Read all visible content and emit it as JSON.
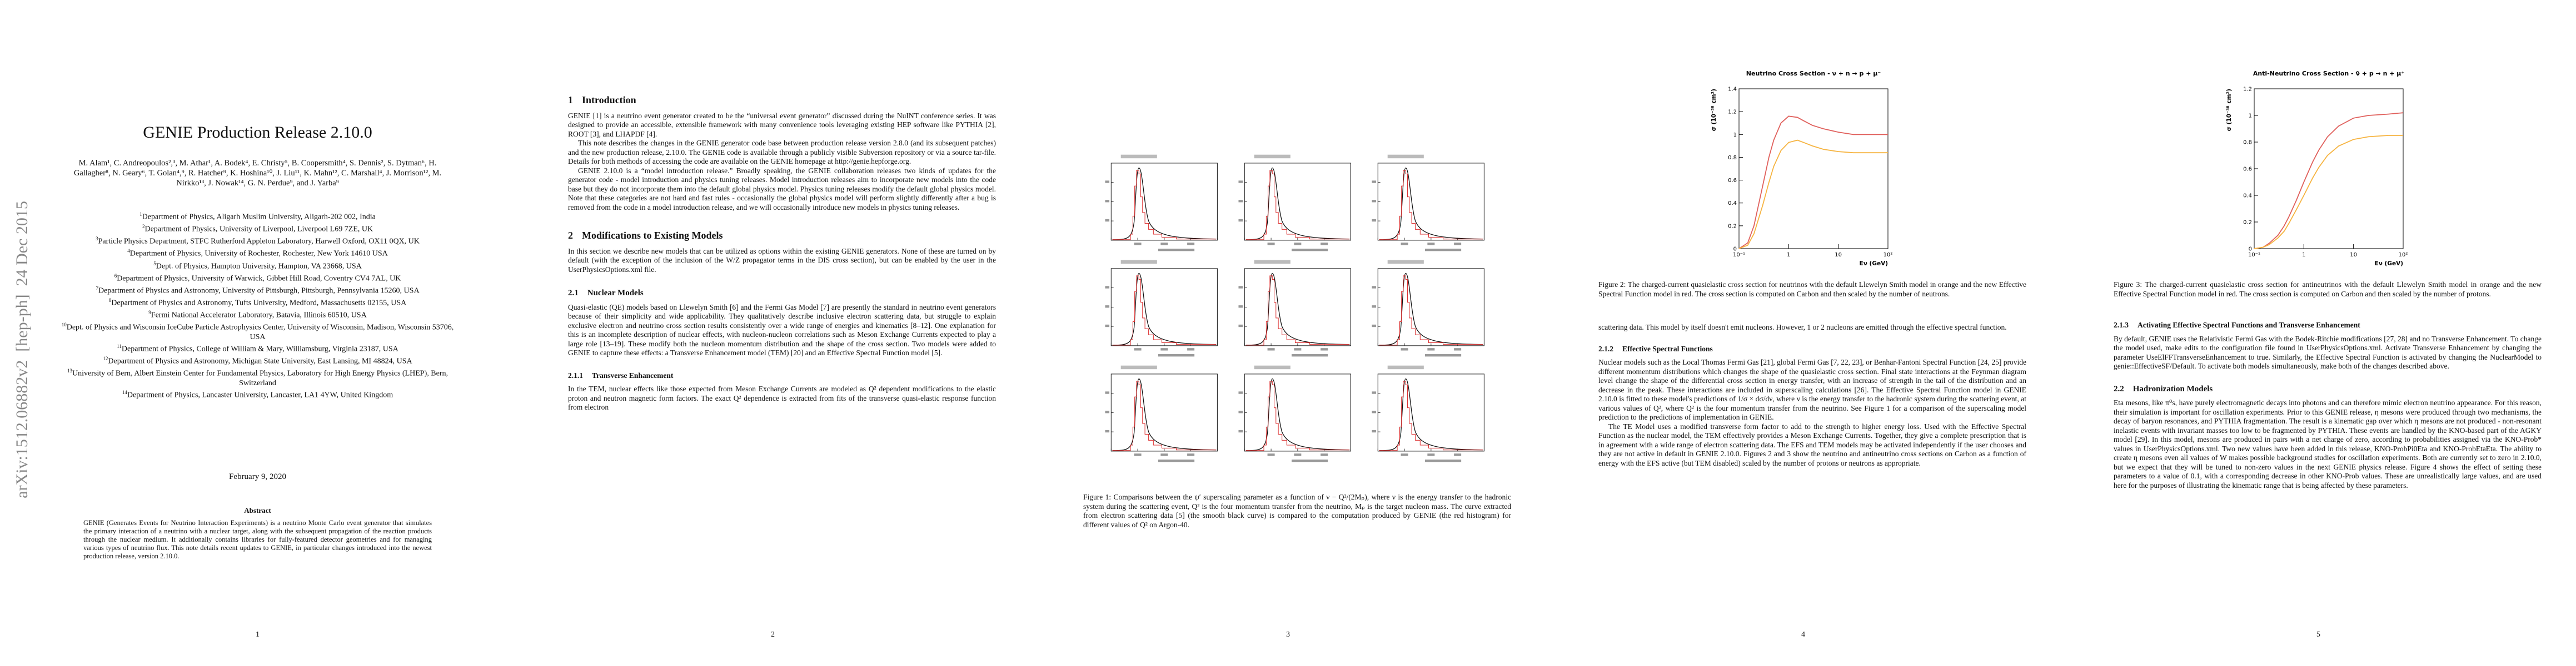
{
  "sidebar": "arXiv:1512.06882v2  [hep-ph]  24 Dec 2015",
  "page1": {
    "title": "GENIE Production Release 2.10.0",
    "authors": "M. Alam¹, C. Andreopoulos²,³, M. Athar¹, A. Bodek⁴, E. Christy⁵, B. Coopersmith⁴, S. Dennis², S. Dytman⁶, H. Gallagher⁸, N. Geary⁶, T. Golan⁴,⁹, R. Hatcher⁹, K. Hoshina¹⁰, J. Liu¹¹, K. Mahn¹², C. Marshall⁴, J. Morrison¹², M. Nirkko¹³, J. Nowak¹⁴, G. N. Perdue⁹, and J. Yarba⁹",
    "affiliations": [
      {
        "mark": "1",
        "text": "Department of Physics, Aligarh Muslim University, Aligarh-202 002, India"
      },
      {
        "mark": "2",
        "text": "Department of Physics, University of Liverpool, Liverpool L69 7ZE, UK"
      },
      {
        "mark": "3",
        "text": "Particle Physics Department, STFC Rutherford Appleton Laboratory, Harwell Oxford, OX11 0QX, UK"
      },
      {
        "mark": "4",
        "text": "Department of Physics, University of Rochester, Rochester, New York 14610 USA"
      },
      {
        "mark": "5",
        "text": "Dept. of Physics, Hampton University, Hampton, VA 23668, USA"
      },
      {
        "mark": "6",
        "text": "Department of Physics, University of Warwick, Gibbet Hill Road, Coventry CV4 7AL, UK"
      },
      {
        "mark": "7",
        "text": "Department of Physics and Astronomy, University of Pittsburgh, Pittsburgh, Pennsylvania 15260, USA"
      },
      {
        "mark": "8",
        "text": "Department of Physics and Astronomy, Tufts University, Medford, Massachusetts 02155, USA"
      },
      {
        "mark": "9",
        "text": "Fermi National Accelerator Laboratory, Batavia, Illinois 60510, USA"
      },
      {
        "mark": "10",
        "text": "Dept. of Physics and Wisconsin IceCube Particle Astrophysics Center, University of Wisconsin, Madison, Wisconsin 53706, USA"
      },
      {
        "mark": "11",
        "text": "Department of Physics, College of William & Mary, Williamsburg, Virginia 23187, USA"
      },
      {
        "mark": "12",
        "text": "Department of Physics and Astronomy, Michigan State University, East Lansing, MI 48824, USA"
      },
      {
        "mark": "13",
        "text": "University of Bern, Albert Einstein Center for Fundamental Physics, Laboratory for High Energy Physics (LHEP), Bern, Switzerland"
      },
      {
        "mark": "14",
        "text": "Department of Physics, Lancaster University, Lancaster, LA1 4YW, United Kingdom"
      }
    ],
    "date": "February 9, 2020",
    "abstract": {
      "heading": "Abstract",
      "text": "GENIE (Generates Events for Neutrino Interaction Experiments) is a neutrino Monte Carlo event generator that simulates the primary interaction of a neutrino with a nuclear target, along with the subsequent propagation of the reaction products through the nuclear medium. It additionally contains libraries for fully-featured detector geometries and for managing various types of neutrino flux. This note details recent updates to GENIE, in particular changes introduced into the newest production release, version 2.10.0."
    },
    "number": 1
  },
  "page2": {
    "introduction": {
      "number": "1",
      "title": "Introduction",
      "paragraphs": [
        "GENIE [1] is a neutrino event generator created to be the “universal event generator” discussed during the NuINT conference series. It was designed to provide an accessible, extensible framework with many convenience tools leveraging existing HEP software like PYTHIA [2], ROOT [3], and LHAPDF [4].",
        "This note describes the changes in the GENIE generator code base between production release version 2.8.0 (and its subsequent patches) and the new production release, 2.10.0. The GENIE code is available through a publicly visible Subversion repository or via a source tar-file. Details for both methods of accessing the code are available on the GENIE homepage at http://genie.hepforge.org.",
        "GENIE 2.10.0 is a “model introduction release.” Broadly speaking, the GENIE collaboration releases two kinds of updates for the generator code - model introduction and physics tuning releases. Model introduction releases aim to incorporate new models into the code base but they do not incorporate them into the default global physics model. Physics tuning releases modify the default global physics model. Note that these categories are not hard and fast rules - occasionally the global physics model will perform slightly differently after a bug is removed from the code in a model introduction release, and we will occasionally introduce new models in physics tuning releases."
      ]
    },
    "modifications": {
      "number": "2",
      "title": "Modifications to Existing Models",
      "paragraph": "In this section we describe new models that can be utilized as options within the existing GENIE generators. None of these are turned on by default (with the exception of the inclusion of the W/Z propagator terms in the DIS cross section), but can be enabled by the user in the UserPhysicsOptions.xml file."
    },
    "nuclear_models": {
      "number": "2.1",
      "title": "Nuclear Models",
      "paragraph": "Quasi-elastic (QE) models based on Llewelyn Smith [6] and the Fermi Gas Model [7] are presently the standard in neutrino event generators because of their simplicity and wide applicability. They qualitatively describe inclusive electron scattering data, but struggle to explain exclusive electron and neutrino cross section results consistently over a wide range of energies and kinematics [8–12]. One explanation for this is an incomplete description of nuclear effects, with nucleon-nucleon correlations such as Meson Exchange Currents expected to play a large role [13–19]. These modify both the nucleon momentum distribution and the shape of the cross section. Two models were added to GENIE to capture these effects: a Transverse Enhancement model (TEM) [20] and an Effective Spectral Function model [5]."
    },
    "transverse_enhancement": {
      "number": "2.1.1",
      "title": "Transverse Enhancement",
      "paragraph": "In the TEM, nuclear effects like those expected from Meson Exchange Currents are modeled as Q² dependent modifications to the elastic proton and neutron magnetic form factors. The exact Q² dependence is extracted from fits of the transverse quasi-elastic response function from electron"
    },
    "number": 2
  },
  "page3": {
    "figure1": {
      "label": "Figure 1:",
      "caption": "Comparisons between the ψ′ superscaling parameter as a function of ν − Q²/(2Mₚ), where ν is the energy transfer to the hadronic system during the scattering event, Q² is the four momentum transfer from the neutrino, Mₚ is the target nucleon mass. The curve extracted from electron scattering data [5] (the smooth black curve) is compared to the computation produced by GENIE (the red histogram) for different values of Q² on Argon-40."
    },
    "number": 3
  },
  "page4": {
    "figure2_plot": {
      "type": "line",
      "title": "Neutrino Cross Section - ν + n → p + μ⁻",
      "x_label": "Eν (GeV)",
      "y_label": "σ (10⁻³⁸ cm²)",
      "log_x": true,
      "xlim": [
        0.1,
        100
      ],
      "xticks": [
        {
          "value": 0.1,
          "label": "10⁻¹"
        },
        1,
        10,
        {
          "value": 100,
          "label": "10²"
        }
      ],
      "ylim": [
        0,
        1.4
      ],
      "yticks": [
        0,
        0.2,
        0.4,
        0.6,
        0.8,
        1,
        1.2,
        1.4
      ],
      "x": [
        0.1,
        0.15,
        0.2,
        0.3,
        0.4,
        0.5,
        0.7,
        1,
        1.5,
        2,
        3,
        5,
        10,
        20,
        50,
        100
      ],
      "series": [
        {
          "color": "#e0605c",
          "values": [
            0,
            0.05,
            0.2,
            0.55,
            0.8,
            0.95,
            1.1,
            1.16,
            1.15,
            1.12,
            1.08,
            1.05,
            1.02,
            1.0,
            1.0,
            1.0
          ]
        },
        {
          "color": "#f6b441",
          "values": [
            0,
            0.03,
            0.13,
            0.38,
            0.58,
            0.72,
            0.86,
            0.93,
            0.95,
            0.93,
            0.9,
            0.87,
            0.85,
            0.84,
            0.84,
            0.84
          ]
        }
      ]
    },
    "figure2": {
      "label": "Figure 2:",
      "caption": "The charged-current quasielastic cross section for neutrinos with the default Llewelyn Smith model in orange and the new Effective Spectral Function model in red. The cross section is computed on Carbon and then scaled by the number of neutrons."
    },
    "continuation": "scattering data. This model by itself doesn't emit nucleons. However, 1 or 2 nucleons are emitted through the effective spectral function.",
    "effective_spectral": {
      "number": "2.1.2",
      "title": "Effective Spectral Functions",
      "paragraphs": [
        "Nuclear models such as the Local Thomas Fermi Gas [21], global Fermi Gas [7, 22, 23], or Benhar-Fantoni Spectral Function [24, 25] provide different momentum distributions which changes the shape of the quasielastic cross section. Final state interactions at the Feynman diagram level change the shape of the differential cross section in energy transfer, with an increase of strength in the tail of the distribution and an decrease in the peak. These interactions are included in superscaling calculations [26]. The Effective Spectral Function model in GENIE 2.10.0 is fitted to these model's predictions of 1/σ × dσ/dν, where ν is the energy transfer to the hadronic system during the scattering event, at various values of Q², where Q² is the four momentum transfer from the neutrino. See Figure 1 for a comparison of the superscaling model prediction to the predictions of implementation in GENIE.",
        "The TE Model uses a modified transverse form factor to add to the strength to higher energy loss. Used with the Effective Spectral Function as the nuclear model, the TEM effectively provides a Meson Exchange Currents. Together, they give a complete prescription that is in agreement with a wide range of electron scattering data. The EFS and TEM models may be activated independently if the user chooses and they are not active in default in GENIE 2.10.0. Figures 2 and 3 show the neutrino and antineutrino cross sections on Carbon as a function of energy with the EFS active (but TEM disabled) scaled by the number of protons or neutrons as appropriate."
      ]
    },
    "number": 4
  },
  "page5": {
    "figure3_plot": {
      "type": "line",
      "title": "Anti-Neutrino Cross Section - ν̄ + p → n + μ⁺",
      "x_label": "Eν (GeV)",
      "y_label": "σ (10⁻³⁸ cm²)",
      "log_x": true,
      "xlim": [
        0.1,
        100
      ],
      "xticks": [
        {
          "value": 0.1,
          "label": "10⁻¹"
        },
        1,
        10,
        {
          "value": 100,
          "label": "10²"
        }
      ],
      "ylim": [
        0,
        1.2
      ],
      "yticks": [
        0,
        0.2,
        0.4,
        0.6,
        0.8,
        1,
        1.2
      ],
      "x": [
        0.1,
        0.15,
        0.2,
        0.3,
        0.4,
        0.5,
        0.7,
        1,
        1.5,
        2,
        3,
        5,
        10,
        20,
        50,
        100
      ],
      "series": [
        {
          "color": "#e0605c",
          "values": [
            0,
            0.01,
            0.04,
            0.1,
            0.17,
            0.24,
            0.36,
            0.5,
            0.65,
            0.74,
            0.84,
            0.92,
            0.98,
            1.0,
            1.01,
            1.02
          ]
        },
        {
          "color": "#f6b441",
          "values": [
            0,
            0.01,
            0.03,
            0.08,
            0.13,
            0.19,
            0.29,
            0.4,
            0.53,
            0.61,
            0.7,
            0.77,
            0.82,
            0.84,
            0.85,
            0.85
          ]
        }
      ]
    },
    "figure3": {
      "label": "Figure 3:",
      "caption": "The charged-current quasielastic cross section for antineutrinos with the default Llewelyn Smith model in orange and the new Effective Spectral Function model in red. The cross section is computed on Carbon and then scaled by the number of protons."
    },
    "activating": {
      "number": "2.1.3",
      "title": "Activating Effective Spectral Functions and Transverse Enhancement",
      "paragraph": "By default, GENIE uses the Relativistic Fermi Gas with the Bodek-Ritchie modifications [27, 28] and no Transverse Enhancement. To change the model used, make edits to the configuration file found in UserPhysicsOptions.xml. Activate Transverse Enhancement by changing the parameter UseElFFTransverseEnhancement to true. Similarly, the Effective Spectral Function is activated by changing the NuclearModel to genie::EffectiveSF/Default. To activate both models simultaneously, make both of the changes described above."
    },
    "hadronization": {
      "number": "2.2",
      "title": "Hadronization Models",
      "paragraph": "Eta mesons, like π⁰s, have purely electromagnetic decays into photons and can therefore mimic electron neutrino appearance. For this reason, their simulation is important for oscillation experiments. Prior to this GENIE release, η mesons were produced through two mechanisms, the decay of baryon resonances, and PYTHIA fragmentation. The result is a kinematic gap over which η mesons are not produced - non-resonant inelastic events with invariant masses too low to be fragmented by PYTHIA. These events are handled by the KNO-based part of the AGKY model [29]. In this model, mesons are produced in pairs with a net charge of zero, according to probabilities assigned via the KNO-Prob* values in UserPhysicsOptions.xml. Two new values have been added in this release, KNO-ProbPi0Eta and KNO-ProbEtaEta. The ability to create η mesons even all values of W makes possible background studies for oscillation experiments. Both are currently set to zero in 2.10.0, but we expect that they will be tuned to non-zero values in the next GENIE physics release. Figure 4 shows the effect of setting these parameters to a value of 0.1, with a corresponding decrease in other KNO-Prob values. These are unrealistically large values, and are used here for the purposes of illustrating the kinematic range that is being affected by these parameters."
    },
    "number": 5
  }
}
